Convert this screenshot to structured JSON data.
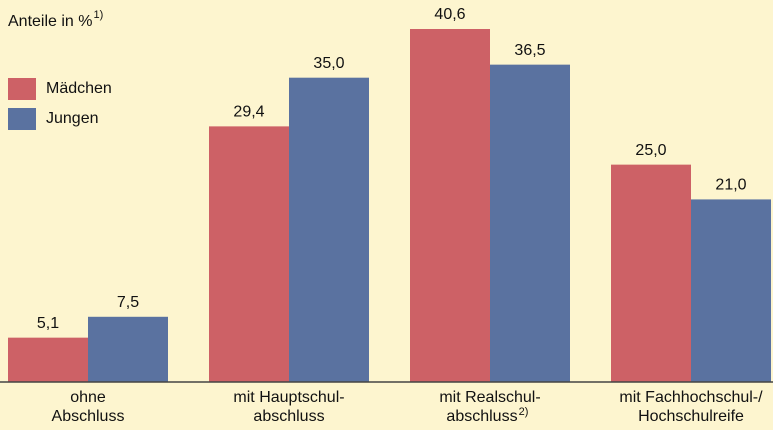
{
  "chart_data": {
    "type": "bar",
    "y_label": "Anteile in %",
    "y_label_note": "1)",
    "categories": [
      [
        "ohne",
        "Abschluss"
      ],
      [
        "mit Hauptschul-",
        "abschluss"
      ],
      [
        "mit Realschul-",
        "abschluss"
      ],
      [
        "mit Fachhochschul-/",
        "Hochschulreife"
      ]
    ],
    "category_notes": {
      "2": "2)"
    },
    "series": [
      {
        "name": "Mädchen",
        "color": "#cd6166",
        "values": [
          5.1,
          29.4,
          40.6,
          25.0
        ],
        "value_labels": [
          "5,1",
          "29,4",
          "40,6",
          "25,0"
        ]
      },
      {
        "name": "Jungen",
        "color": "#5a72a0",
        "values": [
          7.5,
          35.0,
          36.5,
          21.0
        ],
        "value_labels": [
          "7,5",
          "35,0",
          "36,5",
          "21,0"
        ]
      }
    ],
    "legend": "upper-left",
    "background": "#fdf5cf"
  }
}
